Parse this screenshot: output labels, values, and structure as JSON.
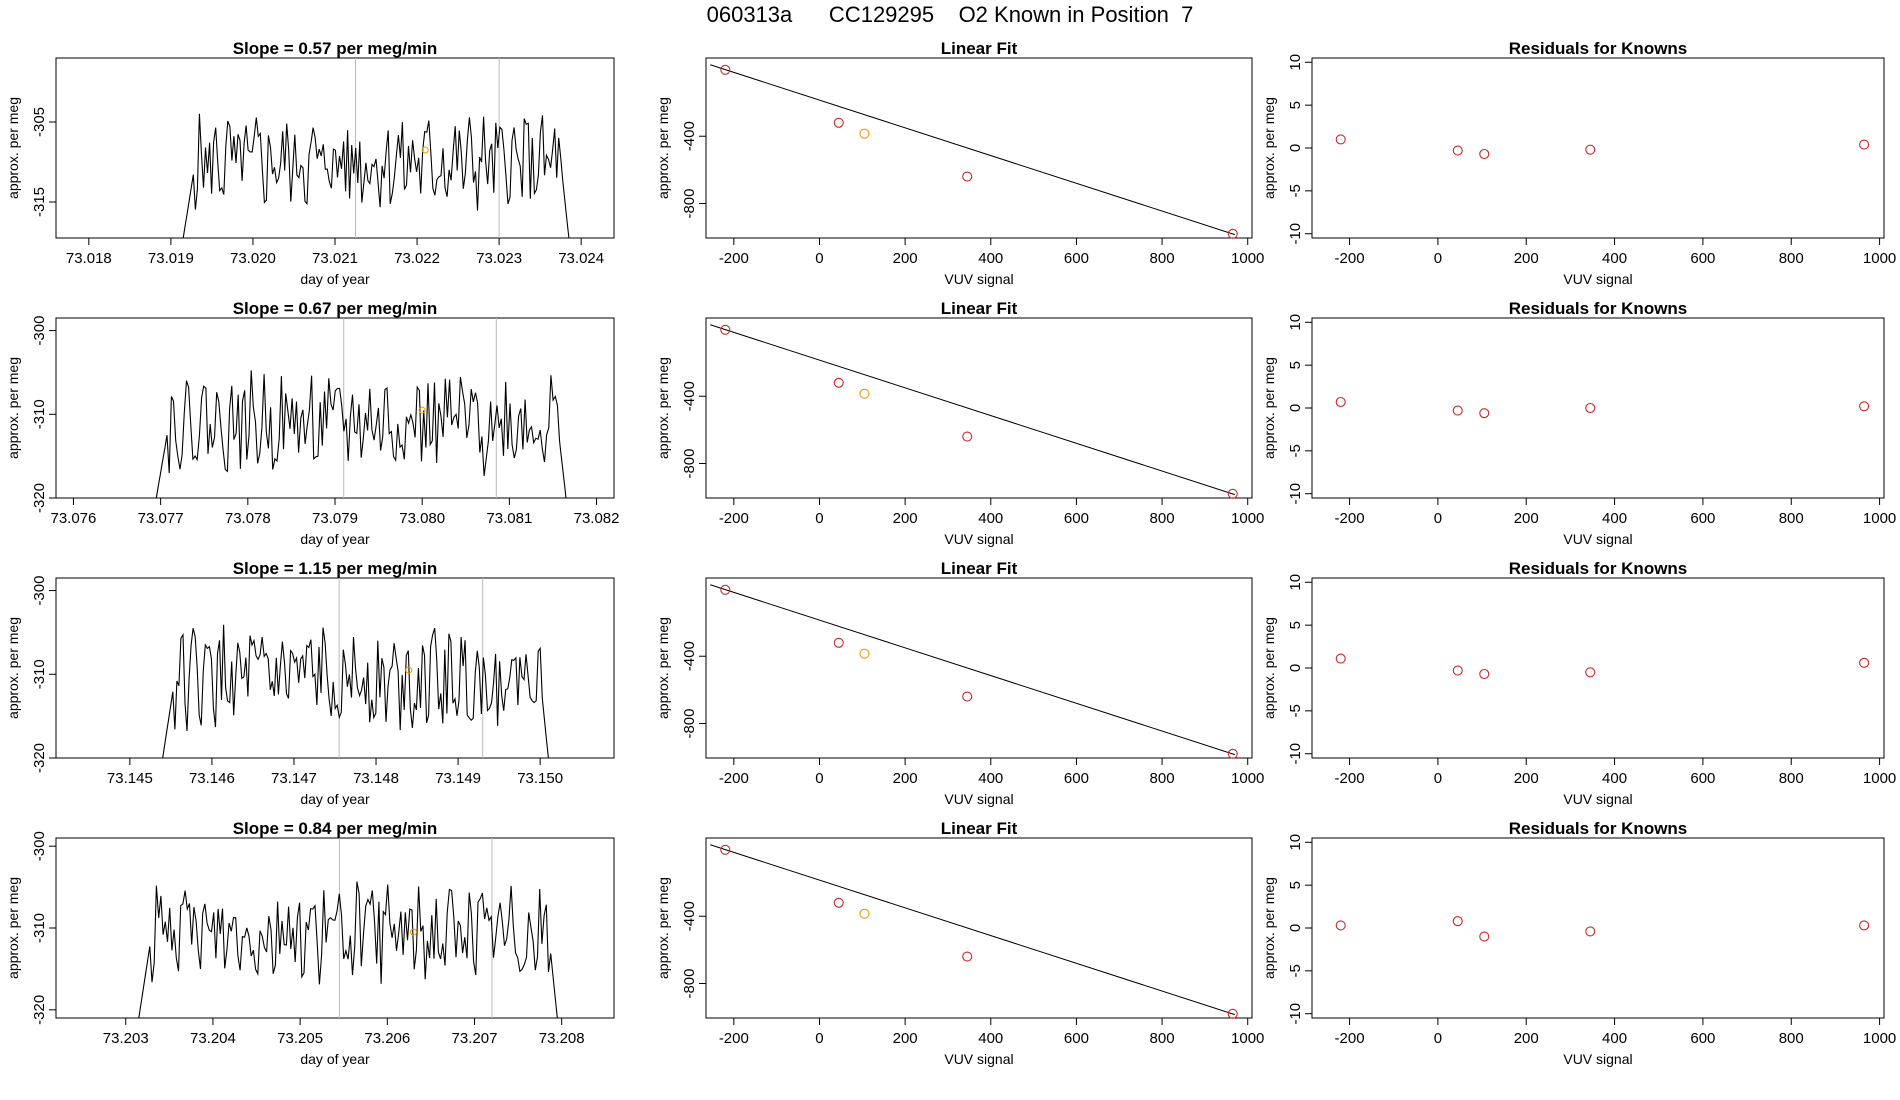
{
  "figure_title": "060313a      CC129295    O2 Known in Position  7",
  "colors": {
    "trace": "#000000",
    "vline": "#bbbbbb",
    "known_point": "#cd2626",
    "highlight_point": "#ee9a00"
  },
  "chart_data": [
    {
      "type": "line",
      "name": "time-series-row-1",
      "title": "Slope =  0.57  per meg/min",
      "xlabel": "day of year",
      "ylabel": "approx. per meg",
      "xlim": [
        73.0176,
        73.0244
      ],
      "ylim": [
        -319.5,
        -297
      ],
      "xticks": [
        "73.018",
        "73.019",
        "73.020",
        "73.021",
        "73.022",
        "73.023",
        "73.024"
      ],
      "yticks": [
        "-305",
        "-315"
      ],
      "vlines": [
        73.02125,
        73.023
      ],
      "t_start": 73.01915,
      "t_end": 73.02385,
      "base": -310,
      "highlight_point": {
        "x": 73.0221,
        "y": -308.5
      },
      "grid": false
    },
    {
      "type": "line",
      "name": "time-series-row-2",
      "title": "Slope =  0.67  per meg/min",
      "xlabel": "day of year",
      "ylabel": "approx. per meg",
      "xlim": [
        73.0758,
        73.0822
      ],
      "ylim": [
        -320,
        -298.5
      ],
      "xticks": [
        "73.076",
        "73.077",
        "73.078",
        "73.079",
        "73.080",
        "73.081",
        "73.082"
      ],
      "yticks": [
        "-300",
        "-310",
        "-320"
      ],
      "vlines": [
        73.0791,
        73.08085
      ],
      "t_start": 73.07695,
      "t_end": 73.08165,
      "base": -311,
      "highlight_point": {
        "x": 73.08,
        "y": -309.5
      },
      "grid": false
    },
    {
      "type": "line",
      "name": "time-series-row-3",
      "title": "Slope =  1.15  per meg/min",
      "xlabel": "day of year",
      "ylabel": "approx. per meg",
      "xlim": [
        73.1441,
        73.1509
      ],
      "ylim": [
        -320,
        -298.5
      ],
      "xticks": [
        "73.145",
        "73.146",
        "73.147",
        "73.148",
        "73.149",
        "73.150"
      ],
      "yticks": [
        "-300",
        "-310",
        "-320"
      ],
      "vlines": [
        73.14755,
        73.1493
      ],
      "t_start": 73.1454,
      "t_end": 73.1501,
      "base": -310.5,
      "highlight_point": {
        "x": 73.1484,
        "y": -309.5
      },
      "grid": false
    },
    {
      "type": "line",
      "name": "time-series-row-4",
      "title": "Slope =  0.84  per meg/min",
      "xlabel": "day of year",
      "ylabel": "approx. per meg",
      "xlim": [
        73.2022,
        73.2086
      ],
      "ylim": [
        -321,
        -299
      ],
      "xticks": [
        "73.203",
        "73.204",
        "73.205",
        "73.206",
        "73.207",
        "73.208"
      ],
      "yticks": [
        "-300",
        "-310",
        "-320"
      ],
      "vlines": [
        73.20545,
        73.2072
      ],
      "t_start": 73.20315,
      "t_end": 73.20795,
      "base": -310.5,
      "highlight_point": {
        "x": 73.2063,
        "y": -310.5
      },
      "grid": false
    },
    {
      "type": "scatter",
      "name": "linear-fit-row-1",
      "title": "Linear Fit",
      "xlabel": "VUV signal",
      "ylabel": "approx. per meg",
      "xlim": [
        -265,
        1010
      ],
      "ylim": [
        -1005,
        65
      ],
      "xticks": [
        -200,
        0,
        200,
        400,
        600,
        800,
        1000
      ],
      "yticks": [
        -400,
        -800
      ],
      "x": [
        -220,
        45,
        105,
        345,
        965
      ],
      "y": [
        -5,
        -320,
        -385,
        -640,
        -980
      ],
      "highlight_index": 2,
      "fit_line": [
        [
          -255,
          25
        ],
        [
          970,
          -985
        ]
      ]
    },
    {
      "type": "scatter",
      "name": "linear-fit-row-2",
      "title": "Linear Fit",
      "xlabel": "VUV signal",
      "ylabel": "approx. per meg",
      "xlim": [
        -265,
        1010
      ],
      "ylim": [
        -1005,
        65
      ],
      "xticks": [
        -200,
        0,
        200,
        400,
        600,
        800,
        1000
      ],
      "yticks": [
        -400,
        -800
      ],
      "x": [
        -220,
        45,
        105,
        345,
        965
      ],
      "y": [
        -5,
        -320,
        -385,
        -640,
        -980
      ],
      "highlight_index": 2,
      "fit_line": [
        [
          -255,
          25
        ],
        [
          970,
          -985
        ]
      ]
    },
    {
      "type": "scatter",
      "name": "linear-fit-row-3",
      "title": "Linear Fit",
      "xlabel": "VUV signal",
      "ylabel": "approx. per meg",
      "xlim": [
        -265,
        1010
      ],
      "ylim": [
        -1005,
        65
      ],
      "xticks": [
        -200,
        0,
        200,
        400,
        600,
        800,
        1000
      ],
      "yticks": [
        -400,
        -800
      ],
      "x": [
        -220,
        45,
        105,
        345,
        965
      ],
      "y": [
        -5,
        -320,
        -385,
        -640,
        -980
      ],
      "highlight_index": 2,
      "fit_line": [
        [
          -255,
          25
        ],
        [
          970,
          -985
        ]
      ]
    },
    {
      "type": "scatter",
      "name": "linear-fit-row-4",
      "title": "Linear Fit",
      "xlabel": "VUV signal",
      "ylabel": "approx. per meg",
      "xlim": [
        -265,
        1010
      ],
      "ylim": [
        -1005,
        65
      ],
      "xticks": [
        -200,
        0,
        200,
        400,
        600,
        800,
        1000
      ],
      "yticks": [
        -400,
        -800
      ],
      "x": [
        -220,
        45,
        105,
        345,
        965
      ],
      "y": [
        -5,
        -320,
        -385,
        -640,
        -980
      ],
      "highlight_index": 2,
      "fit_line": [
        [
          -255,
          25
        ],
        [
          970,
          -985
        ]
      ]
    },
    {
      "type": "scatter",
      "name": "residuals-row-1",
      "title": "Residuals for Knowns",
      "xlabel": "VUV signal",
      "ylabel": "approx. per meg",
      "xlim": [
        -285,
        1010
      ],
      "ylim": [
        -10.5,
        10.5
      ],
      "xticks": [
        -200,
        0,
        200,
        400,
        600,
        800,
        1000
      ],
      "yticks": [
        10,
        5,
        0,
        -5,
        -10
      ],
      "x": [
        -220,
        45,
        105,
        345,
        965
      ],
      "y": [
        1.0,
        -0.3,
        -0.7,
        -0.2,
        0.4
      ]
    },
    {
      "type": "scatter",
      "name": "residuals-row-2",
      "title": "Residuals for Knowns",
      "xlabel": "VUV signal",
      "ylabel": "approx. per meg",
      "xlim": [
        -285,
        1010
      ],
      "ylim": [
        -10.5,
        10.5
      ],
      "xticks": [
        -200,
        0,
        200,
        400,
        600,
        800,
        1000
      ],
      "yticks": [
        10,
        5,
        0,
        -5,
        -10
      ],
      "x": [
        -220,
        45,
        105,
        345,
        965
      ],
      "y": [
        0.7,
        -0.3,
        -0.6,
        0.0,
        0.2
      ]
    },
    {
      "type": "scatter",
      "name": "residuals-row-3",
      "title": "Residuals for Knowns",
      "xlabel": "VUV signal",
      "ylabel": "approx. per meg",
      "xlim": [
        -285,
        1010
      ],
      "ylim": [
        -10.5,
        10.5
      ],
      "xticks": [
        -200,
        0,
        200,
        400,
        600,
        800,
        1000
      ],
      "yticks": [
        10,
        5,
        0,
        -5,
        -10
      ],
      "x": [
        -220,
        45,
        105,
        345,
        965
      ],
      "y": [
        1.1,
        -0.3,
        -0.7,
        -0.5,
        0.6
      ]
    },
    {
      "type": "scatter",
      "name": "residuals-row-4",
      "title": "Residuals for Knowns",
      "xlabel": "VUV signal",
      "ylabel": "approx. per meg",
      "xlim": [
        -285,
        1010
      ],
      "ylim": [
        -10.5,
        10.5
      ],
      "xticks": [
        -200,
        0,
        200,
        400,
        600,
        800,
        1000
      ],
      "yticks": [
        10,
        5,
        0,
        -5,
        -10
      ],
      "x": [
        -220,
        45,
        105,
        345,
        965
      ],
      "y": [
        0.3,
        0.8,
        -1.0,
        -0.4,
        0.3
      ]
    }
  ]
}
